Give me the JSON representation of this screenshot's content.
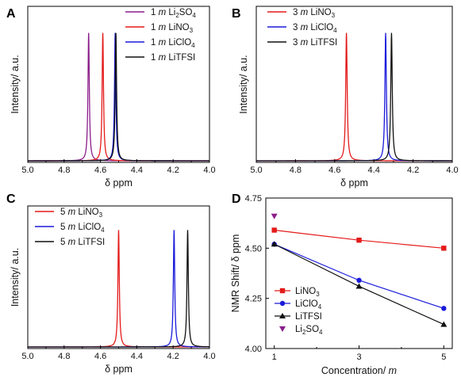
{
  "colors": {
    "Li2SO4": "#8B1E8B",
    "LiNO3": "#E41A1A",
    "LiClO4": "#1A1ADB",
    "LiTFSI": "#111111"
  },
  "chart_data": [
    {
      "panel": "A",
      "type": "line",
      "xlabel": "δ ppm",
      "ylabel": "Intensity/ a.u.",
      "xlim": [
        5.0,
        4.0
      ],
      "x_ticks": [
        "5.0",
        "4.8",
        "4.6",
        "4.4",
        "4.2",
        "4.0"
      ],
      "legend_position": "top-right",
      "series": [
        {
          "key": "Li2SO4",
          "conc": "1",
          "formula": "Li",
          "sub": "2",
          "rest": "SO",
          "sub2": "4",
          "peak": 4.665
        },
        {
          "key": "LiNO3",
          "conc": "1",
          "formula": "LiNO",
          "sub": "3",
          "rest": "",
          "sub2": "",
          "peak": 4.587
        },
        {
          "key": "LiClO4",
          "conc": "1",
          "formula": "LiClO",
          "sub": "4",
          "rest": "",
          "sub2": "",
          "peak": 4.519
        },
        {
          "key": "LiTFSI",
          "conc": "1",
          "formula": "LiTFSI",
          "sub": "",
          "rest": "",
          "sub2": "",
          "peak": 4.515
        }
      ]
    },
    {
      "panel": "B",
      "type": "line",
      "xlabel": "δ ppm",
      "ylabel": "Intensity/ a.u.",
      "xlim": [
        5.0,
        4.0
      ],
      "x_ticks": [
        "5.0",
        "4.8",
        "4.6",
        "4.4",
        "4.2",
        "4.0"
      ],
      "legend_position": "top-left",
      "series": [
        {
          "key": "LiNO3",
          "conc": "3",
          "formula": "LiNO",
          "sub": "3",
          "rest": "",
          "sub2": "",
          "peak": 4.54
        },
        {
          "key": "LiClO4",
          "conc": "3",
          "formula": "LiClO",
          "sub": "4",
          "rest": "",
          "sub2": "",
          "peak": 4.34
        },
        {
          "key": "LiTFSI",
          "conc": "3",
          "formula": "LiTFSI",
          "sub": "",
          "rest": "",
          "sub2": "",
          "peak": 4.31
        }
      ]
    },
    {
      "panel": "C",
      "type": "line",
      "xlabel": "δ ppm",
      "ylabel": "Intensity/ a.u.",
      "xlim": [
        5.0,
        4.0
      ],
      "x_ticks": [
        "5.0",
        "4.8",
        "4.6",
        "4.4",
        "4.2",
        "4.0"
      ],
      "legend_position": "top-left",
      "series": [
        {
          "key": "LiNO3",
          "conc": "5",
          "formula": "LiNO",
          "sub": "3",
          "rest": "",
          "sub2": "",
          "peak": 4.5
        },
        {
          "key": "LiClO4",
          "conc": "5",
          "formula": "LiClO",
          "sub": "4",
          "rest": "",
          "sub2": "",
          "peak": 4.195
        },
        {
          "key": "LiTFSI",
          "conc": "5",
          "formula": "LiTFSI",
          "sub": "",
          "rest": "",
          "sub2": "",
          "peak": 4.12
        }
      ]
    },
    {
      "panel": "D",
      "type": "scatter",
      "xlabel": "Concentration/ ",
      "xlabel_italic": "m",
      "ylabel": "NMR Shift/ δ ppm",
      "xlim": [
        0.8,
        5.2
      ],
      "ylim": [
        4.0,
        4.75
      ],
      "x_ticks": [
        "1",
        "3",
        "5"
      ],
      "y_ticks": [
        "4.00",
        "4.25",
        "4.50",
        "4.75"
      ],
      "legend_position": "bottom-left",
      "series": [
        {
          "key": "LiNO3",
          "formula": "LiNO",
          "sub": "3",
          "rest": "",
          "sub2": "",
          "marker": "square",
          "x": [
            1,
            3,
            5
          ],
          "y": [
            4.59,
            4.54,
            4.5
          ]
        },
        {
          "key": "LiClO4",
          "formula": "LiClO",
          "sub": "4",
          "rest": "",
          "sub2": "",
          "marker": "circle",
          "x": [
            1,
            3,
            5
          ],
          "y": [
            4.52,
            4.34,
            4.2
          ]
        },
        {
          "key": "LiTFSI",
          "formula": "LiTFSI",
          "sub": "",
          "rest": "",
          "sub2": "",
          "marker": "triangle-up",
          "x": [
            1,
            3,
            5
          ],
          "y": [
            4.52,
            4.31,
            4.12
          ]
        },
        {
          "key": "Li2SO4",
          "formula": "Li",
          "sub": "2",
          "rest": "SO",
          "sub2": "4",
          "marker": "triangle-down",
          "x": [
            1
          ],
          "y": [
            4.66
          ]
        }
      ]
    }
  ]
}
